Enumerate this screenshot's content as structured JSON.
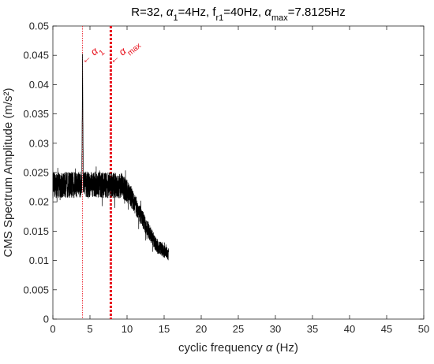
{
  "chart_data": {
    "type": "line",
    "title_parts": [
      {
        "t": "R=32, "
      },
      {
        "t": "α",
        "greek": true
      },
      {
        "t": "1",
        "sub": true
      },
      {
        "t": "=4Hz, f"
      },
      {
        "t": "r1",
        "sub": true
      },
      {
        "t": "=40Hz, "
      },
      {
        "t": "α",
        "greek": true
      },
      {
        "t": "max",
        "sub": true
      },
      {
        "t": "=7.8125Hz"
      }
    ],
    "xlabel_parts": [
      {
        "t": "cyclic frequency "
      },
      {
        "t": "α",
        "greek": true
      },
      {
        "t": " (Hz)"
      }
    ],
    "ylabel": "CMS Spectrum Amplitude (m/s²)",
    "xlim": [
      0,
      50
    ],
    "ylim": [
      0,
      0.05
    ],
    "xticks": [
      0,
      5,
      10,
      15,
      20,
      25,
      30,
      35,
      40,
      45,
      50
    ],
    "yticks": [
      0,
      0.005,
      0.01,
      0.015,
      0.02,
      0.025,
      0.03,
      0.035,
      0.04,
      0.045,
      0.05
    ],
    "ytick_labels": [
      "0",
      "0.005",
      "0.01",
      "0.015",
      "0.02",
      "0.025",
      "0.03",
      "0.035",
      "0.04",
      "0.045",
      "0.05"
    ],
    "grid": false,
    "line_color": "#000000",
    "marker_color": "#e8121d",
    "envelope": [
      {
        "x": 0.0,
        "y": 0.0228,
        "spread": 0.0022
      },
      {
        "x": 3.9,
        "y": 0.023,
        "spread": 0.0022
      },
      {
        "x": 4.0,
        "y": 0.0452,
        "spread": 0.0
      },
      {
        "x": 4.1,
        "y": 0.023,
        "spread": 0.0022
      },
      {
        "x": 9.3,
        "y": 0.0228,
        "spread": 0.0022
      },
      {
        "x": 10.5,
        "y": 0.021,
        "spread": 0.0018
      },
      {
        "x": 12.5,
        "y": 0.016,
        "spread": 0.0014
      },
      {
        "x": 14.0,
        "y": 0.0125,
        "spread": 0.0012
      },
      {
        "x": 15.6,
        "y": 0.011,
        "spread": 0.001
      }
    ],
    "vlines": [
      {
        "name": "alpha-1-line",
        "x": 4.0,
        "style": "thin-dotted"
      },
      {
        "name": "alpha-max-line",
        "x": 7.8125,
        "style": "thick-dotted"
      }
    ],
    "annotations": [
      {
        "name": "alpha-1-annotation",
        "arrow": "←",
        "symbol": "α",
        "sub": "1",
        "x": 4.0,
        "y": 0.0437
      },
      {
        "name": "alpha-max-annotation",
        "arrow": "←",
        "symbol": "α",
        "sub": "max",
        "x": 7.8125,
        "y": 0.0437
      }
    ]
  }
}
